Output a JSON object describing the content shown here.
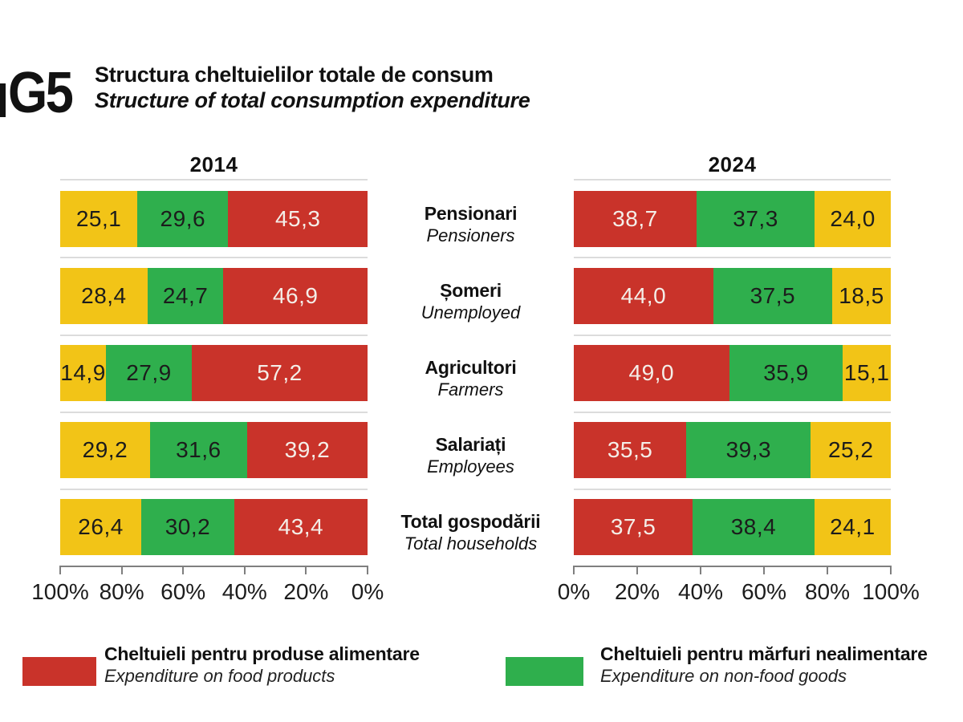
{
  "figure": {
    "tag": "G5",
    "title_ro": "Structura cheltuielilor totale de consum",
    "title_en": "Structure of total consumption expenditure"
  },
  "colors": {
    "food": "#c9332a",
    "nonfood": "#2faf4d",
    "other": "#f2c417",
    "text_dark": "#1c1c1c",
    "text_light": "#f4eee8",
    "grid": "#dcdcdc",
    "axis": "#7f7f7f"
  },
  "chart_data": {
    "type": "bar",
    "subtype": "100-percent-stacked-horizontal, two mirrored panels",
    "title": "Structura cheltuielilor totale de consum / Structure of total consumption expenditure",
    "categories": [
      {
        "ro": "Pensionari",
        "en": "Pensioners"
      },
      {
        "ro": "Șomeri",
        "en": "Unemployed"
      },
      {
        "ro": "Agricultori",
        "en": "Farmers"
      },
      {
        "ro": "Salariați",
        "en": "Employees"
      },
      {
        "ro": "Total gospodării",
        "en": "Total households"
      }
    ],
    "panels": [
      {
        "year": "2014",
        "axis_direction": "reversed",
        "ticks": [
          "100%",
          "80%",
          "60%",
          "40%",
          "20%",
          "0%"
        ],
        "order": [
          "other",
          "nonfood",
          "food"
        ],
        "rows": [
          {
            "labels": [
              "25,1",
              "29,6",
              "45,3"
            ],
            "values": [
              25.1,
              29.6,
              45.3
            ]
          },
          {
            "labels": [
              "28,4",
              "24,7",
              "46,9"
            ],
            "values": [
              28.4,
              24.7,
              46.9
            ]
          },
          {
            "labels": [
              "14,9",
              "27,9",
              "57,2"
            ],
            "values": [
              14.9,
              27.9,
              57.2
            ]
          },
          {
            "labels": [
              "29,2",
              "31,6",
              "39,2"
            ],
            "values": [
              29.2,
              31.6,
              39.2
            ]
          },
          {
            "labels": [
              "26,4",
              "30,2",
              "43,4"
            ],
            "values": [
              26.4,
              30.2,
              43.4
            ]
          }
        ]
      },
      {
        "year": "2024",
        "axis_direction": "normal",
        "ticks": [
          "0%",
          "20%",
          "40%",
          "60%",
          "80%",
          "100%"
        ],
        "order": [
          "food",
          "nonfood",
          "other"
        ],
        "rows": [
          {
            "labels": [
              "38,7",
              "37,3",
              "24,0"
            ],
            "values": [
              38.7,
              37.3,
              24.0
            ]
          },
          {
            "labels": [
              "44,0",
              "37,5",
              "18,5"
            ],
            "values": [
              44.0,
              37.5,
              18.5
            ]
          },
          {
            "labels": [
              "49,0",
              "35,9",
              "15,1"
            ],
            "values": [
              49.0,
              35.9,
              15.1
            ]
          },
          {
            "labels": [
              "35,5",
              "39,3",
              "25,2"
            ],
            "values": [
              35.5,
              39.3,
              25.2
            ]
          },
          {
            "labels": [
              "37,5",
              "38,4",
              "24,1"
            ],
            "values": [
              37.5,
              38.4,
              24.1
            ]
          }
        ]
      }
    ],
    "legend": [
      {
        "series": "food",
        "ro": "Cheltuieli pentru produse alimentare",
        "en": "Expenditure on food products"
      },
      {
        "series": "nonfood",
        "ro": "Cheltuieli pentru mărfuri nealimentare",
        "en": "Expenditure on non-food goods"
      }
    ]
  }
}
